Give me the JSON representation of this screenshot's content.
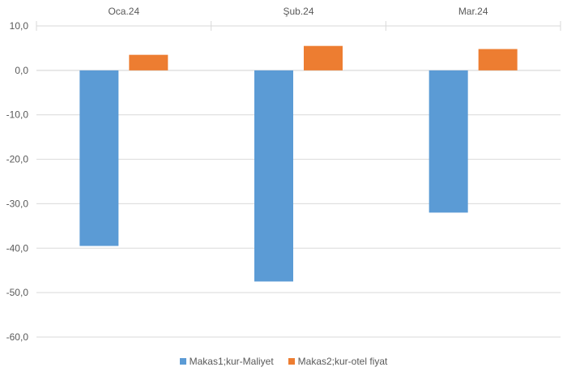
{
  "chart_data": {
    "type": "bar",
    "categories": [
      "Oca.24",
      "Şub.24",
      "Mar.24"
    ],
    "series": [
      {
        "name": "Makas1;kur-Maliyet",
        "color": "#5B9BD5",
        "values": [
          -39.5,
          -47.5,
          -32.0
        ]
      },
      {
        "name": "Makas2;kur-otel fiyat",
        "color": "#ED7D31",
        "values": [
          3.5,
          5.5,
          4.8
        ]
      }
    ],
    "y_ticks": [
      "10,0",
      "0,0",
      "-10,0",
      "-20,0",
      "-30,0",
      "-40,0",
      "-50,0",
      "-60,0"
    ],
    "y_tick_values": [
      10,
      0,
      -10,
      -20,
      -30,
      -40,
      -50,
      -60
    ],
    "ylim": [
      -60,
      10
    ],
    "category_labels_position": "top",
    "grid": true,
    "legend_position": "bottom"
  }
}
